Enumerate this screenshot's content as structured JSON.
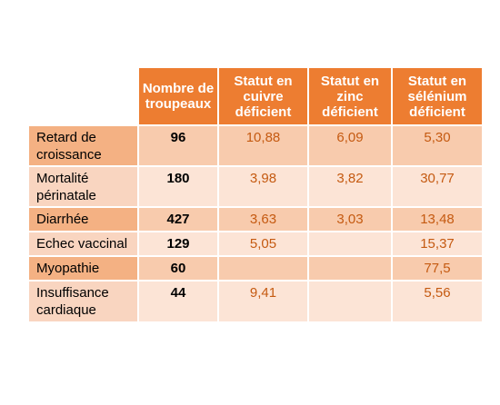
{
  "table": {
    "headers": [
      "",
      "Nombre de troupeaux",
      "Statut en cuivre déficient",
      "Statut en zinc déficient",
      "Statut en sélénium déficient"
    ],
    "rows": [
      {
        "label": "Retard de croissance",
        "count": "96",
        "cuivre": "10,88",
        "zinc": "6,09",
        "selenium": "5,30"
      },
      {
        "label": "Mortalité périnatale",
        "count": "180",
        "cuivre": "3,98",
        "zinc": "3,82",
        "selenium": "30,77"
      },
      {
        "label": "Diarrhée",
        "count": "427",
        "cuivre": "3,63",
        "zinc": "3,03",
        "selenium": "13,48"
      },
      {
        "label": "Echec vaccinal",
        "count": "129",
        "cuivre": "5,05",
        "zinc": "",
        "selenium": "15,37"
      },
      {
        "label": "Myopathie",
        "count": "60",
        "cuivre": "",
        "zinc": "",
        "selenium": "77,5"
      },
      {
        "label": "Insuffisance cardiaque",
        "count": "44",
        "cuivre": "9,41",
        "zinc": "",
        "selenium": "5,56"
      }
    ]
  },
  "colors": {
    "header_bg": "#ed7d31",
    "header_text": "#ffffff",
    "row_odd": "#f8cbad",
    "row_even": "#fce4d6",
    "value_text": "#c55a11"
  }
}
